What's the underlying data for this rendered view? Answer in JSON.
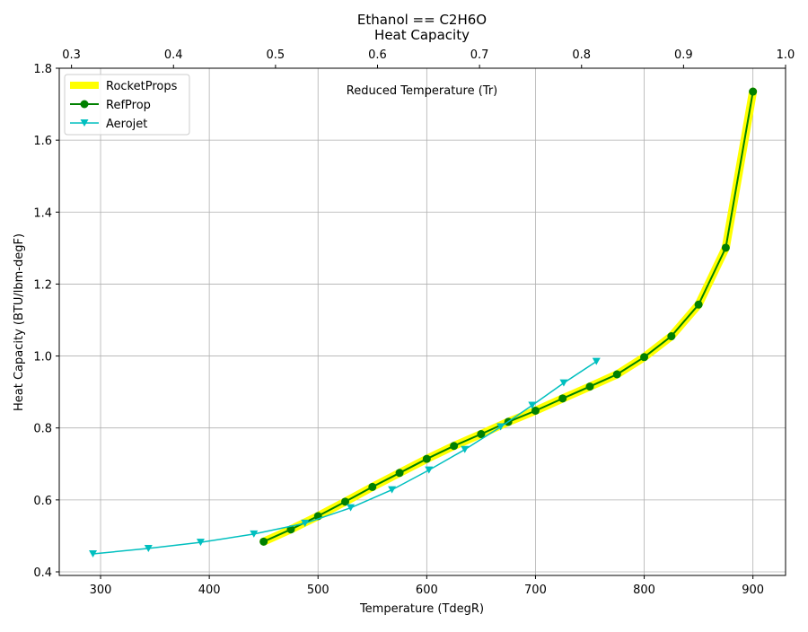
{
  "chart_data": {
    "type": "line",
    "title": "Ethanol == C2H6O",
    "subtitle": "Heat Capacity",
    "xlabel": "Temperature (TdegR)",
    "ylabel": "Heat Capacity (BTU/lbm-degF)",
    "secondary_xlabel": "Reduced Temperature (Tr)",
    "xlim": [
      262,
      930
    ],
    "ylim": [
      0.39,
      1.8
    ],
    "secondary_xlim": [
      0.288,
      1.0
    ],
    "xticks": [
      300,
      400,
      500,
      600,
      700,
      800,
      900
    ],
    "yticks": [
      0.4,
      0.6,
      0.8,
      1.0,
      1.2,
      1.4,
      1.6,
      1.8
    ],
    "secondary_xticks": [
      0.3,
      0.4,
      0.5,
      0.6,
      0.7,
      0.8,
      0.9,
      1.0
    ],
    "xtick_labels": [
      "300",
      "400",
      "500",
      "600",
      "700",
      "800",
      "900"
    ],
    "ytick_labels": [
      "0.4",
      "0.6",
      "0.8",
      "1.0",
      "1.2",
      "1.4",
      "1.6",
      "1.8"
    ],
    "secondary_xtick_labels": [
      "0.3",
      "0.4",
      "0.5",
      "0.6",
      "0.7",
      "0.8",
      "0.9",
      "1.0"
    ],
    "grid": true,
    "legend_position": "top-left",
    "series": [
      {
        "name": "RocketProps",
        "color": "#ffff00",
        "marker": "none",
        "x": [
          450,
          475,
          500,
          525,
          550,
          575,
          600,
          625,
          650,
          675,
          700,
          725,
          750,
          775,
          800,
          825,
          850,
          875,
          900
        ],
        "y": [
          0.484,
          0.518,
          0.555,
          0.595,
          0.636,
          0.675,
          0.714,
          0.75,
          0.783,
          0.817,
          0.848,
          0.882,
          0.915,
          0.949,
          0.997,
          1.055,
          1.143,
          1.301,
          1.735
        ]
      },
      {
        "name": "RefProp",
        "color": "#008000",
        "marker": "circle",
        "x": [
          450,
          475,
          500,
          525,
          550,
          575,
          600,
          625,
          650,
          675,
          700,
          725,
          750,
          775,
          800,
          825,
          850,
          875,
          900
        ],
        "y": [
          0.484,
          0.518,
          0.555,
          0.595,
          0.636,
          0.675,
          0.714,
          0.75,
          0.783,
          0.817,
          0.848,
          0.882,
          0.915,
          0.949,
          0.997,
          1.055,
          1.143,
          1.301,
          1.735
        ]
      },
      {
        "name": "Aerojet",
        "color": "#00bfbf",
        "marker": "triangle-down",
        "x": [
          293,
          344,
          392,
          441,
          488,
          530,
          568,
          602,
          635,
          668,
          697,
          726,
          756
        ],
        "y": [
          0.45,
          0.465,
          0.482,
          0.505,
          0.535,
          0.578,
          0.628,
          0.683,
          0.74,
          0.803,
          0.863,
          0.925,
          0.985
        ]
      }
    ]
  }
}
